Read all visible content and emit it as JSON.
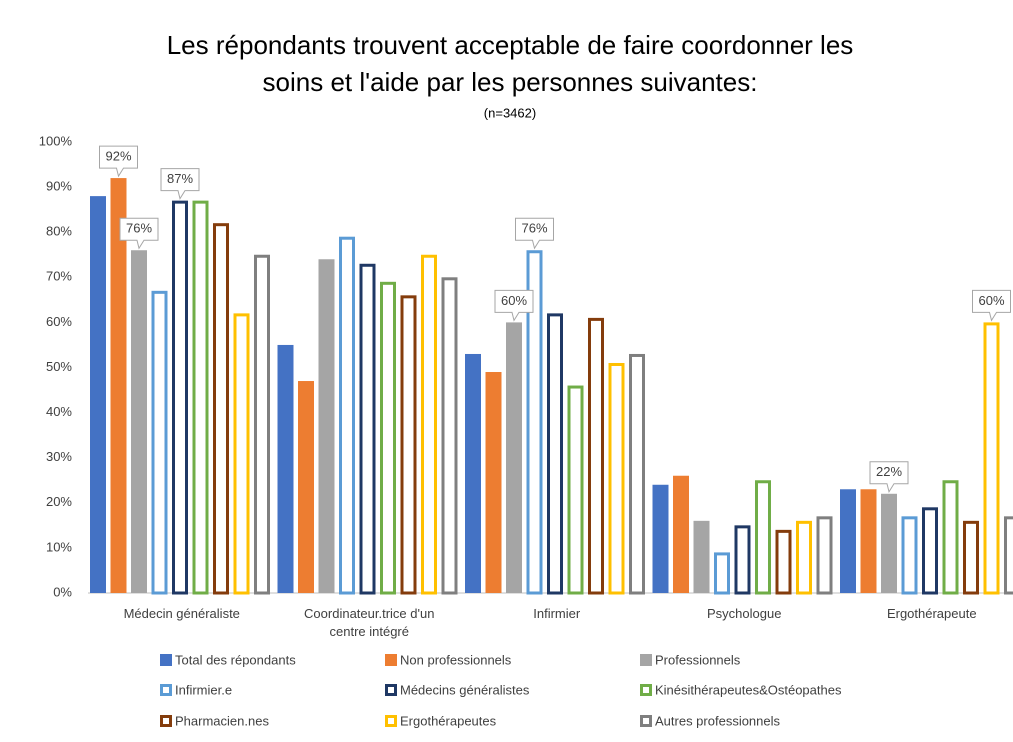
{
  "chart_data": {
    "type": "bar",
    "title": [
      "Les répondants trouvent acceptable de faire coordonner les",
      "soins et l'aide par les personnes suivantes:"
    ],
    "subtitle": "(n=3462)",
    "categories": [
      "Médecin généraliste",
      "Coordinateur.trice d'un centre intégré",
      "Infirmier",
      "Psychologue",
      "Ergothérapeute"
    ],
    "series": [
      {
        "name": "Total des répondants",
        "color": "#4472c4",
        "outline": false,
        "values": [
          88,
          55,
          53,
          24,
          23
        ]
      },
      {
        "name": "Non professionnels",
        "color": "#ed7d31",
        "outline": false,
        "values": [
          92,
          47,
          49,
          26,
          23
        ],
        "value_labels": [
          "92%",
          null,
          null,
          null,
          null
        ]
      },
      {
        "name": "Professionnels",
        "color": "#a5a5a5",
        "outline": false,
        "values": [
          76,
          74,
          60,
          16,
          22
        ],
        "value_labels": [
          "76%",
          null,
          "60%",
          null,
          "22%"
        ]
      },
      {
        "name": "Infirmier.e",
        "color": "#5b9bd5",
        "outline": true,
        "values": [
          67,
          79,
          76,
          9,
          17
        ],
        "value_labels": [
          null,
          null,
          "76%",
          null,
          null
        ]
      },
      {
        "name": "Médecins généralistes",
        "color": "#1f3864",
        "outline": true,
        "values": [
          87,
          73,
          62,
          15,
          19
        ],
        "value_labels": [
          "87%",
          null,
          null,
          null,
          null
        ]
      },
      {
        "name": "Kinésithérapeutes&Ostéopathes",
        "color": "#70ad47",
        "outline": true,
        "values": [
          87,
          69,
          46,
          25,
          25
        ]
      },
      {
        "name": "Pharmacien.nes",
        "color": "#843c0c",
        "outline": true,
        "values": [
          82,
          66,
          61,
          14,
          16
        ]
      },
      {
        "name": "Ergothérapeutes",
        "color": "#ffc000",
        "outline": true,
        "values": [
          62,
          75,
          51,
          16,
          60
        ],
        "value_labels": [
          null,
          null,
          null,
          null,
          "60%"
        ]
      },
      {
        "name": "Autres professionnels",
        "color": "#7f7f7f",
        "outline": true,
        "values": [
          75,
          70,
          53,
          17,
          17
        ]
      }
    ],
    "ylim": [
      0,
      100
    ],
    "yticks": [
      {
        "value": 0,
        "label": "0%"
      },
      {
        "value": 10,
        "label": "10%"
      },
      {
        "value": 20,
        "label": "20%"
      },
      {
        "value": 30,
        "label": "30%"
      },
      {
        "value": 40,
        "label": "40%"
      },
      {
        "value": 50,
        "label": "50%"
      },
      {
        "value": 60,
        "label": "60%"
      },
      {
        "value": 70,
        "label": "70%"
      },
      {
        "value": 80,
        "label": "80%"
      },
      {
        "value": 90,
        "label": "90%"
      },
      {
        "value": 100,
        "label": "100%"
      }
    ],
    "grid": false
  }
}
